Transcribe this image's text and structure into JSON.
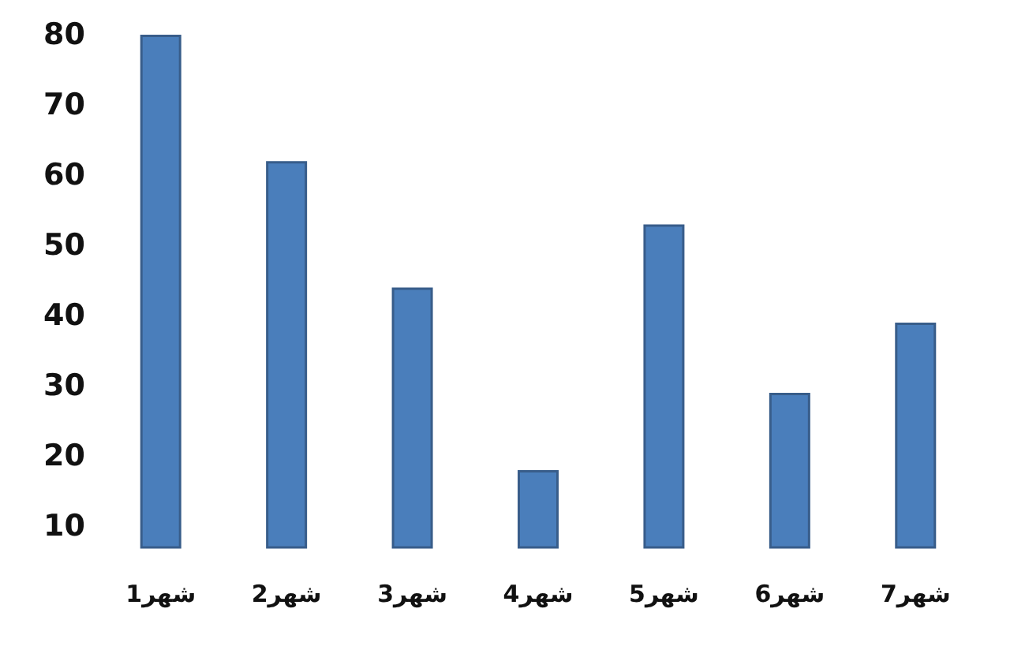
{
  "chart_data": {
    "type": "bar",
    "categories": [
      "شهر1",
      "شهر2",
      "شهر3",
      "شهر4",
      "شهر5",
      "شهر6",
      "شهر7"
    ],
    "values": [
      80,
      62,
      44,
      18,
      53,
      29,
      39
    ],
    "color": "#4a7ebb",
    "ylim": [
      7,
      80
    ],
    "yticks": [
      10,
      20,
      30,
      40,
      50,
      60,
      70,
      80
    ],
    "grid": false
  }
}
